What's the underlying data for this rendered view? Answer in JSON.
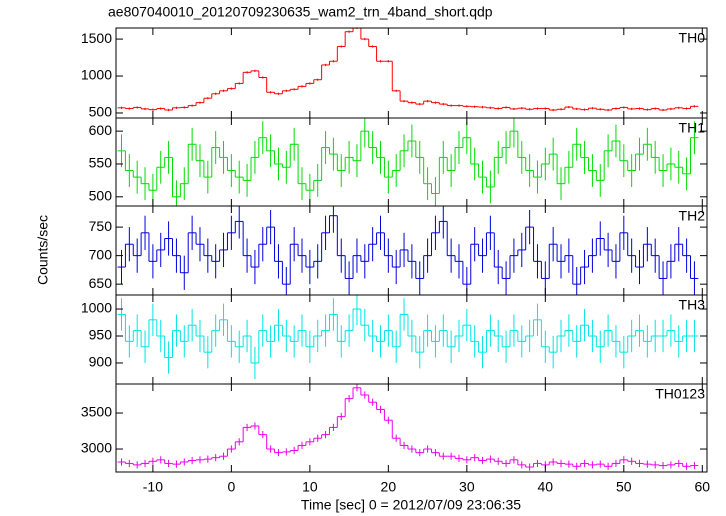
{
  "chart_data": {
    "type": "step",
    "title": "ae807040010_20120709230635_wam2_trn_4band_short.qdp",
    "ylabel": "Counts/sec",
    "xlabel": "Time [sec] 0 = 2012/07/09 23:06:35",
    "xlim": [
      -14.7,
      60.6
    ],
    "xticks": [
      -10,
      0,
      10,
      20,
      30,
      40,
      50,
      60
    ],
    "x": [
      -14,
      -13,
      -12,
      -11,
      -10,
      -9,
      -8,
      -7,
      -6,
      -5,
      -4,
      -3,
      -2,
      -1,
      0,
      1,
      2,
      3,
      4,
      5,
      6,
      7,
      8,
      9,
      10,
      11,
      12,
      13,
      14,
      15,
      16,
      17,
      18,
      19,
      20,
      21,
      22,
      23,
      24,
      25,
      26,
      27,
      28,
      29,
      30,
      31,
      32,
      33,
      34,
      35,
      36,
      37,
      38,
      39,
      40,
      41,
      42,
      43,
      44,
      45,
      46,
      47,
      48,
      49,
      50,
      51,
      52,
      53,
      54,
      55,
      56,
      57,
      58,
      59
    ],
    "panels": [
      {
        "name": "TH0",
        "color": "#ff0000",
        "error": 15,
        "ylim": [
          432,
          1650
        ],
        "yticks": [
          500,
          1000,
          1500
        ],
        "values": [
          570,
          560,
          575,
          555,
          545,
          560,
          540,
          570,
          575,
          600,
          640,
          700,
          760,
          800,
          830,
          900,
          1050,
          1070,
          980,
          780,
          760,
          800,
          820,
          860,
          900,
          950,
          1150,
          1200,
          1400,
          1600,
          1650,
          1500,
          1400,
          1200,
          1200,
          800,
          660,
          640,
          620,
          660,
          640,
          620,
          600,
          600,
          590,
          585,
          580,
          570,
          560,
          575,
          555,
          565,
          550,
          560,
          560,
          540,
          550,
          580,
          555,
          545,
          565,
          550,
          540,
          560,
          575,
          555,
          560,
          545,
          560,
          540,
          555,
          570,
          560,
          590
        ]
      },
      {
        "name": "TH1",
        "color": "#00dd00",
        "error": 25,
        "ylim": [
          486,
          620
        ],
        "yticks": [
          500,
          550,
          600
        ],
        "values": [
          570,
          540,
          530,
          520,
          510,
          545,
          560,
          500,
          520,
          580,
          555,
          530,
          575,
          560,
          540,
          530,
          525,
          560,
          590,
          570,
          550,
          545,
          580,
          520,
          510,
          525,
          575,
          565,
          540,
          560,
          555,
          600,
          575,
          560,
          530,
          540,
          570,
          585,
          560,
          520,
          505,
          560,
          540,
          575,
          590,
          550,
          530,
          515,
          560,
          575,
          600,
          560,
          540,
          530,
          550,
          565,
          520,
          545,
          580,
          560,
          540,
          525,
          570,
          585,
          555,
          540,
          565,
          580,
          560,
          540,
          550,
          545,
          535,
          590
        ]
      },
      {
        "name": "TH2",
        "color": "#0000dd",
        "error": 30,
        "ylim": [
          631,
          787
        ],
        "yticks": [
          650,
          700,
          750
        ],
        "values": [
          680,
          720,
          700,
          740,
          690,
          710,
          730,
          700,
          670,
          740,
          720,
          700,
          690,
          710,
          740,
          760,
          700,
          680,
          720,
          750,
          690,
          650,
          720,
          700,
          680,
          690,
          740,
          770,
          700,
          660,
          700,
          690,
          720,
          740,
          700,
          680,
          710,
          690,
          660,
          700,
          740,
          760,
          700,
          690,
          650,
          720,
          700,
          740,
          680,
          660,
          700,
          710,
          750,
          690,
          660,
          720,
          690,
          700,
          650,
          680,
          700,
          730,
          710,
          690,
          740,
          700,
          680,
          720,
          700,
          660,
          690,
          720,
          700,
          660
        ]
      },
      {
        "name": "TH3",
        "color": "#00e5e5",
        "error": 30,
        "ylim": [
          861,
          1026
        ],
        "yticks": [
          900,
          950,
          1000
        ],
        "values": [
          990,
          940,
          960,
          930,
          980,
          950,
          910,
          960,
          940,
          970,
          950,
          920,
          960,
          980,
          940,
          930,
          950,
          900,
          960,
          940,
          970,
          950,
          940,
          960,
          930,
          950,
          960,
          990,
          940,
          960,
          1000,
          970,
          950,
          940,
          960,
          930,
          990,
          950,
          920,
          960,
          940,
          960,
          930,
          950,
          970,
          940,
          920,
          960,
          950,
          930,
          960,
          940,
          950,
          980,
          930,
          920,
          950,
          960,
          940,
          970,
          950,
          930,
          960,
          940,
          920,
          950,
          960,
          940,
          950,
          950,
          960,
          940,
          950,
          950
        ]
      },
      {
        "name": "TH0123",
        "color": "#ee00ee",
        "error": 50,
        "ylim": [
          2681,
          3903
        ],
        "yticks": [
          3000,
          3500
        ],
        "values": [
          2820,
          2800,
          2780,
          2800,
          2830,
          2850,
          2800,
          2790,
          2820,
          2840,
          2850,
          2860,
          2880,
          2900,
          3000,
          3100,
          3300,
          3320,
          3200,
          3000,
          2950,
          2960,
          2980,
          3050,
          3100,
          3150,
          3200,
          3300,
          3450,
          3700,
          3850,
          3750,
          3650,
          3550,
          3400,
          3150,
          3050,
          3000,
          2950,
          3000,
          2950,
          2900,
          2900,
          2870,
          2850,
          2880,
          2840,
          2860,
          2830,
          2800,
          2850,
          2780,
          2750,
          2800,
          2780,
          2820,
          2800,
          2790,
          2760,
          2800,
          2780,
          2790,
          2760,
          2800,
          2850,
          2830,
          2800,
          2790,
          2780,
          2770,
          2780,
          2800,
          2760,
          2770
        ]
      }
    ]
  }
}
